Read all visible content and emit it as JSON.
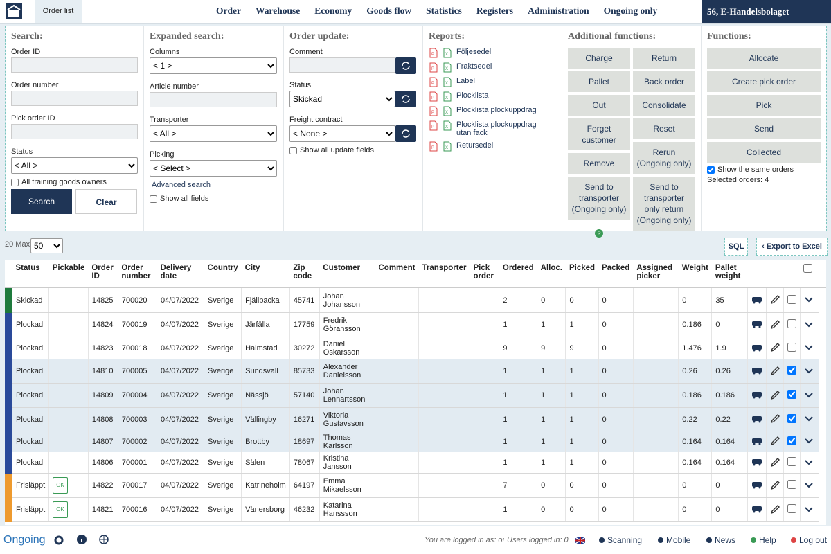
{
  "nav": {
    "tab": "Order list",
    "menu": [
      "Order",
      "Warehouse",
      "Economy",
      "Goods flow",
      "Statistics",
      "Registers",
      "Administration",
      "Ongoing only"
    ],
    "company": "56, E-Handelsbolaget"
  },
  "search": {
    "title": "Search:",
    "fields": [
      {
        "label": "Order ID"
      },
      {
        "label": "Order number"
      },
      {
        "label": "Pick order ID"
      },
      {
        "label": "Status",
        "value": "< All >"
      }
    ],
    "checkbox": "All training goods owners",
    "buttons": [
      "Search",
      "Clear"
    ]
  },
  "expanded": {
    "title": "Expanded search:",
    "fields": [
      {
        "label": "Columns",
        "value": "< 1 >"
      },
      {
        "label": "Article number"
      },
      {
        "label": "Transporter",
        "value": "< All >"
      },
      {
        "label": "Picking",
        "value": "< Select >"
      }
    ],
    "link": "Advanced search",
    "checkbox": "Show all fields"
  },
  "update": {
    "title": "Order update:",
    "fields": [
      {
        "label": "Comment"
      },
      {
        "label": "Status",
        "value": "Skickad"
      },
      {
        "label": "Freight contract",
        "value": "< None >"
      }
    ],
    "checkbox": "Show all update fields"
  },
  "reports": {
    "title": "Reports:",
    "items": [
      "Följesedel",
      "Fraktsedel",
      "Label",
      "Plocklista",
      "Plocklista plockuppdrag",
      "Plocklista plockuppdrag utan fack",
      "Retursedel"
    ]
  },
  "additional": {
    "title": "Additional functions:",
    "left": [
      "Charge",
      "Pallet",
      "Out",
      "Forget customer",
      "Remove",
      "Send to transporter (Ongoing only)"
    ],
    "right": [
      "Return",
      "Back order",
      "Consolidate",
      "Reset",
      "Rerun (Ongoing only)",
      "Send to transporter only return (Ongoing only)"
    ]
  },
  "functions": {
    "title": "Functions:",
    "buttons": [
      "Allocate",
      "Create pick order",
      "Pick",
      "Send",
      "Collected"
    ],
    "checkbox": "Show the same orders",
    "checked": true,
    "selected": "Selected orders: 4"
  },
  "toolbar": {
    "max": "20 Max",
    "page_size": "50",
    "sql": "SQL",
    "export": "Export to Excel"
  },
  "table": {
    "headers": [
      "Status",
      "Pickable",
      "Order ID",
      "Order number",
      "Delivery date",
      "Country",
      "City",
      "Zip code",
      "Customer",
      "Comment",
      "Transporter",
      "Pick order",
      "Ordered",
      "Alloc.",
      "Picked",
      "Packed",
      "Assigned picker",
      "Weight",
      "Pallet weight"
    ],
    "rows": [
      {
        "color": "#1e7a3c",
        "checked": false,
        "cells": [
          "Skickad",
          null,
          14825,
          700020,
          "04/07/2022",
          "Sverige",
          "Fjällbacka",
          45741,
          "Johan Johansson",
          null,
          null,
          null,
          2,
          0,
          0,
          0,
          null,
          0,
          35
        ]
      },
      {
        "color": "#2a4a9a",
        "checked": false,
        "cells": [
          "Plockad",
          null,
          14824,
          700019,
          "04/07/2022",
          "Sverige",
          "Järfälla",
          17759,
          "Fredrik Göransson",
          null,
          null,
          null,
          1,
          1,
          1,
          0,
          null,
          0.186,
          0
        ]
      },
      {
        "color": "#2a4a9a",
        "checked": false,
        "cells": [
          "Plockad",
          null,
          14823,
          700018,
          "04/07/2022",
          "Sverige",
          "Halmstad",
          30272,
          "Daniel Oskarsson",
          null,
          null,
          null,
          9,
          9,
          9,
          0,
          null,
          1.476,
          1.9
        ]
      },
      {
        "color": "#2a4a9a",
        "checked": true,
        "cells": [
          "Plockad",
          null,
          14810,
          700005,
          "04/07/2022",
          "Sverige",
          "Sundsvall",
          85733,
          "Alexander Danielsson",
          null,
          null,
          null,
          1,
          1,
          1,
          0,
          null,
          0.26,
          0.26
        ]
      },
      {
        "color": "#2a4a9a",
        "checked": true,
        "cells": [
          "Plockad",
          null,
          14809,
          700004,
          "04/07/2022",
          "Sverige",
          "Nässjö",
          57140,
          "Johan Lennartsson",
          null,
          null,
          null,
          1,
          1,
          1,
          0,
          null,
          0.186,
          0.186
        ]
      },
      {
        "color": "#2a4a9a",
        "checked": true,
        "cells": [
          "Plockad",
          null,
          14808,
          700003,
          "04/07/2022",
          "Sverige",
          "Vällingby",
          16271,
          "Viktoria Gustavsson",
          null,
          null,
          null,
          1,
          1,
          1,
          0,
          null,
          0.22,
          0.22
        ]
      },
      {
        "color": "#2a4a9a",
        "checked": true,
        "cells": [
          "Plockad",
          null,
          14807,
          700002,
          "04/07/2022",
          "Sverige",
          "Brottby",
          18697,
          "Thomas Karlsson",
          null,
          null,
          null,
          1,
          1,
          1,
          0,
          null,
          0.164,
          0.164
        ]
      },
      {
        "color": "#2a4a9a",
        "checked": false,
        "cells": [
          "Plockad",
          null,
          14806,
          700001,
          "04/07/2022",
          "Sverige",
          "Sälen",
          78067,
          "Kristina Jansson",
          null,
          null,
          null,
          1,
          1,
          1,
          0,
          null,
          0.164,
          0.164
        ]
      },
      {
        "color": "#ee9a2e",
        "checked": false,
        "cells": [
          "Frisläppt",
          "OK",
          14822,
          700017,
          "04/07/2022",
          "Sverige",
          "Katrineholm",
          64197,
          "Emma Mikaelsson",
          null,
          null,
          null,
          7,
          0,
          0,
          0,
          null,
          0,
          0
        ]
      },
      {
        "color": "#ee9a2e",
        "checked": false,
        "cells": [
          "Frisläppt",
          "OK",
          14821,
          700016,
          "04/07/2022",
          "Sverige",
          "Vänersborg",
          46232,
          "Katarina Hanssson",
          null,
          null,
          null,
          1,
          0,
          0,
          0,
          null,
          0,
          0
        ]
      }
    ]
  },
  "footer": {
    "brand": "Ongoing",
    "login": "You are logged in as: oi",
    "users": "Users logged in: 0",
    "links": [
      "Scanning",
      "Mobile",
      "News",
      "Help",
      "Log out"
    ]
  }
}
